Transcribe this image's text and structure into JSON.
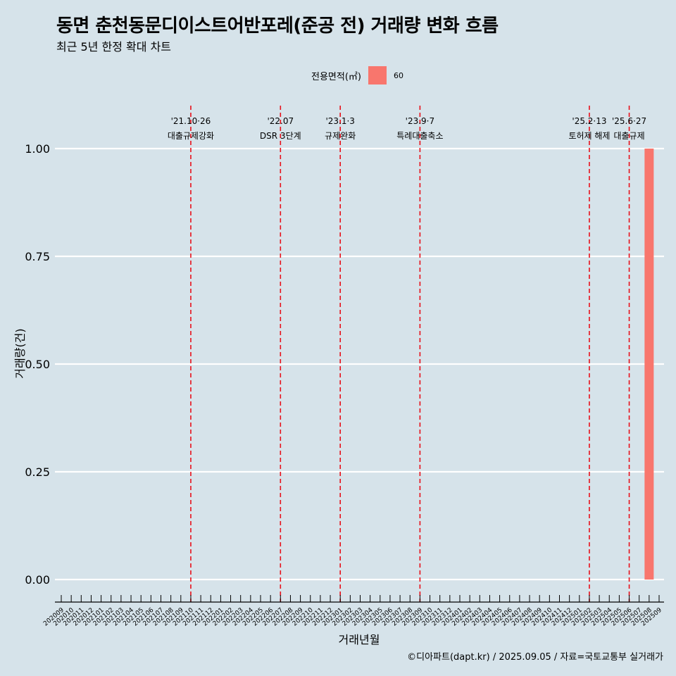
{
  "title": "동면 춘천동문디이스트어반포레(준공 전) 거래량 변화 흐름",
  "subtitle": "최근 5년 한정 확대 차트",
  "caption": "©디아파트(dapt.kr) / 2025.09.05 / 자료=국토교통부 실거래가",
  "legend": {
    "title": "전용면적(㎡)",
    "entries": [
      {
        "label": "60",
        "color": "#f8766d"
      }
    ]
  },
  "chart_data": {
    "type": "bar",
    "title": "동면 춘천동문디이스트어반포레(준공 전) 거래량 변화 흐름",
    "subtitle": "최근 5년 한정 확대 차트",
    "xlabel": "거래년월",
    "ylabel": "거래량(건)",
    "ylim": [
      0,
      1
    ],
    "yticks": [
      0,
      0.25,
      0.5,
      0.75,
      1
    ],
    "ytick_labels": [
      "0.00",
      "0.25",
      "0.50",
      "0.75",
      "1.00"
    ],
    "categories": [
      "202009",
      "202010",
      "202011",
      "202012",
      "202101",
      "202102",
      "202103",
      "202104",
      "202105",
      "202106",
      "202107",
      "202108",
      "202109",
      "202110",
      "202111",
      "202112",
      "202201",
      "202202",
      "202203",
      "202204",
      "202205",
      "202206",
      "202207",
      "202208",
      "202209",
      "202210",
      "202211",
      "202212",
      "202301",
      "202302",
      "202303",
      "202304",
      "202305",
      "202306",
      "202307",
      "202308",
      "202309",
      "202310",
      "202311",
      "202312",
      "202401",
      "202402",
      "202403",
      "202404",
      "202405",
      "202406",
      "202407",
      "202408",
      "202409",
      "202410",
      "202411",
      "202412",
      "202501",
      "202502",
      "202503",
      "202504",
      "202505",
      "202506",
      "202507",
      "202508",
      "202509"
    ],
    "series": [
      {
        "name": "60",
        "color": "#f8766d",
        "bars": [
          {
            "category": "202508",
            "value": 1
          }
        ]
      }
    ],
    "annotations": [
      {
        "category": "202110",
        "date": "'21.10·26",
        "label": "대출규제강화"
      },
      {
        "category": "202207",
        "date": "'22.07",
        "label": "DSR 3단계"
      },
      {
        "category": "202301",
        "date": "'23.1·3",
        "label": "규제완화"
      },
      {
        "category": "202309",
        "date": "'23.9·7",
        "label": "특례대출축소"
      },
      {
        "category": "202502",
        "date": "'25.2·13",
        "label": "토허제 해제"
      },
      {
        "category": "202506",
        "date": "'25.6·27",
        "label": "대출규제"
      }
    ]
  }
}
